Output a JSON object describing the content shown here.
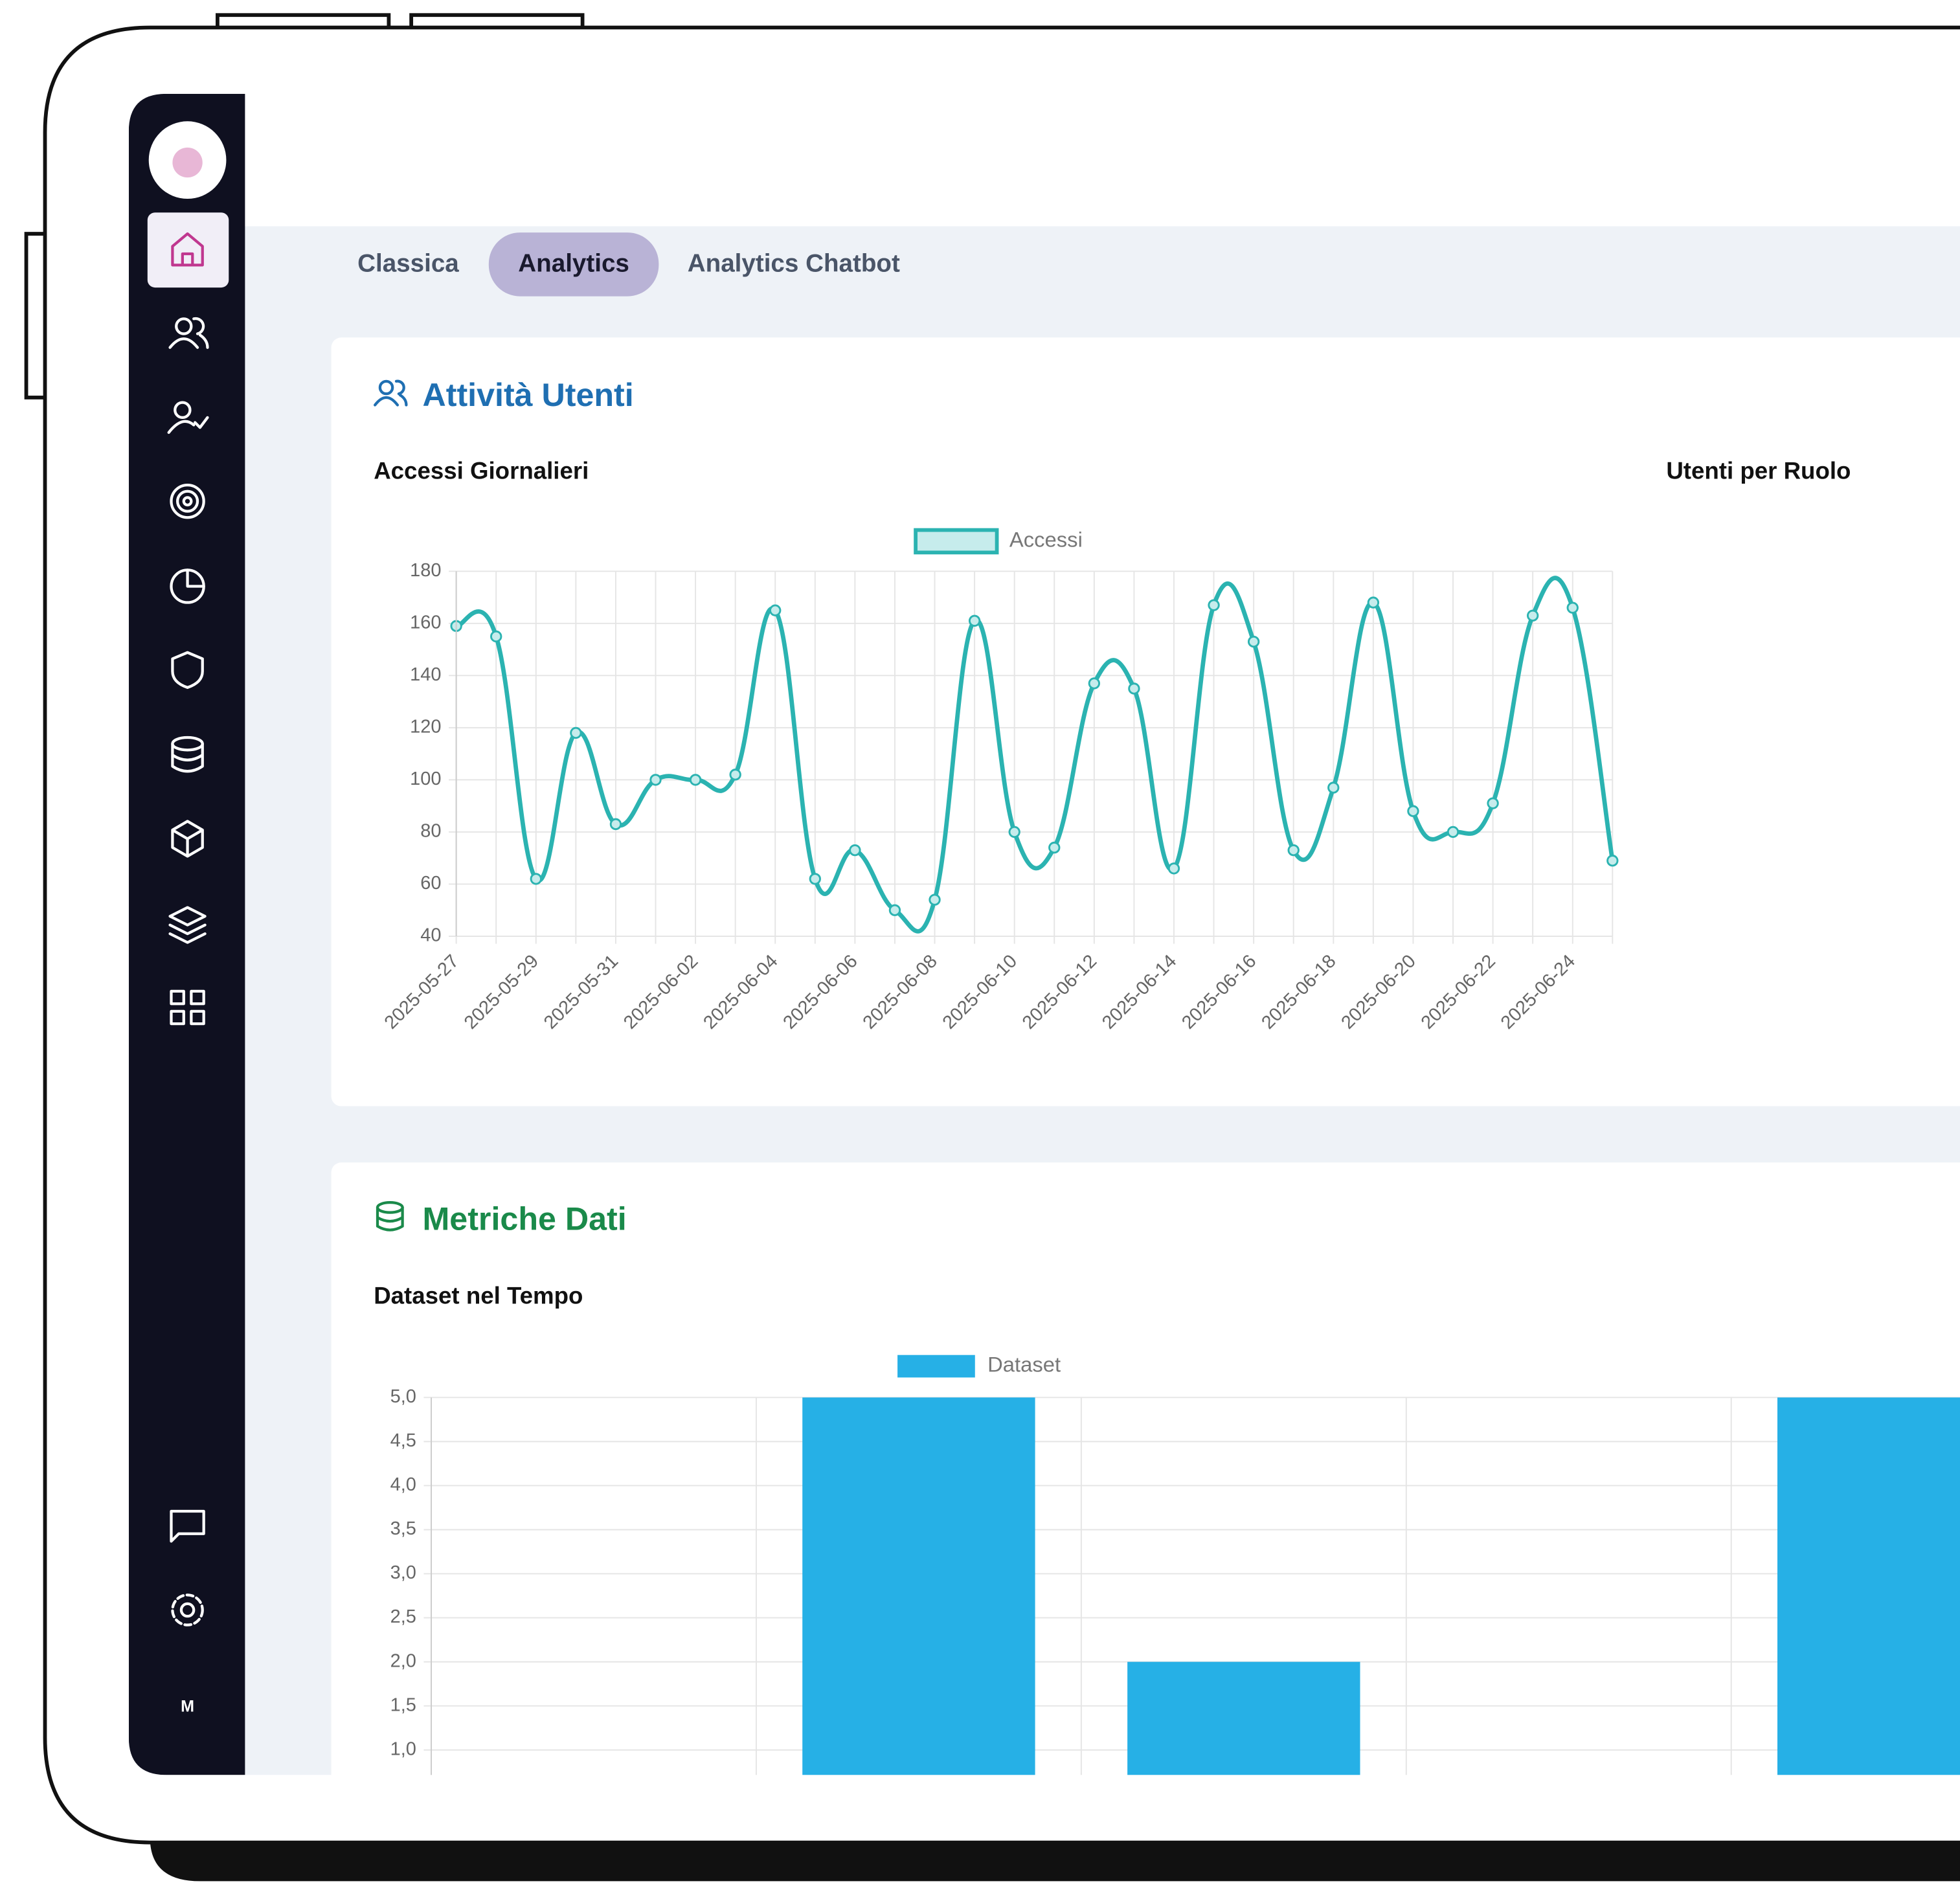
{
  "tabs": [
    "Classica",
    "Analytics",
    "Analytics Chatbot"
  ],
  "sections": [
    {
      "title": "Attività Utenti",
      "panel_title": "Utenti per Ruolo"
    },
    {
      "title": "Metriche Dati"
    }
  ],
  "user_initial": "M",
  "chart_data": [
    {
      "type": "line",
      "title": "Accessi Giornalieri",
      "categories": [
        "2025-05-27",
        null,
        "2025-05-29",
        null,
        "2025-05-31",
        null,
        "2025-06-02",
        null,
        "2025-06-04",
        null,
        "2025-06-06",
        null,
        "2025-06-08",
        null,
        "2025-06-10",
        null,
        "2025-06-12",
        null,
        "2025-06-14",
        null,
        "2025-06-16",
        null,
        "2025-06-18",
        null,
        "2025-06-20",
        null,
        "2025-06-22",
        null,
        "2025-06-24",
        null
      ],
      "series": [
        {
          "name": "Accessi",
          "color": "#2bb3b1",
          "values": [
            159,
            155,
            62,
            118,
            83,
            100,
            100,
            102,
            165,
            62,
            73,
            50,
            54,
            161,
            80,
            74,
            137,
            135,
            66,
            167,
            153,
            73,
            97,
            168,
            88,
            80,
            91,
            163,
            166,
            69
          ]
        }
      ],
      "ylim": [
        40,
        180
      ],
      "yticks": [
        40,
        60,
        80,
        100,
        120,
        140,
        160,
        180
      ],
      "grid": true,
      "legend": "top"
    },
    {
      "type": "bar",
      "title": "Dataset nel Tempo",
      "categories": [
        null,
        null,
        null,
        null,
        null
      ],
      "series": [
        {
          "name": "Dataset",
          "color": "#26b0e6",
          "values": [
            0,
            5,
            2,
            0,
            5
          ]
        }
      ],
      "ylim": [
        0,
        5
      ],
      "yticks": [
        {
          "value": 1,
          "label": "1,0"
        },
        {
          "value": 1.5,
          "label": "1,5"
        },
        {
          "value": 2,
          "label": "2,0"
        },
        {
          "value": 2.5,
          "label": "2,5"
        },
        {
          "value": 3,
          "label": "3,0"
        },
        {
          "value": 3.5,
          "label": "3,5"
        },
        {
          "value": 4,
          "label": "4,0"
        },
        {
          "value": 4.5,
          "label": "4,5"
        },
        {
          "value": 5,
          "label": "5,0"
        }
      ],
      "grid": true,
      "legend": "top"
    }
  ]
}
